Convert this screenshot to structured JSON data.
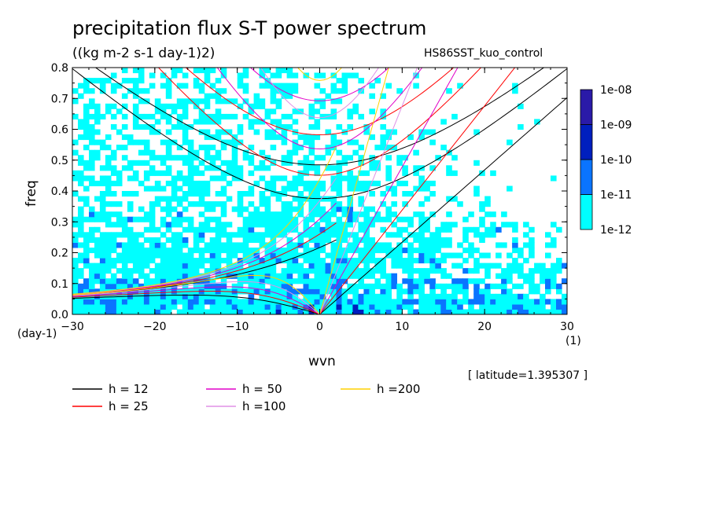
{
  "title": "precipitation flux S-T power spectrum",
  "units": "((kg m-2 s-1 day-1)2)",
  "run_name": "HS86SST_kuo_control",
  "latitude_label": "[ latitude=1.395307 ]",
  "chart_data": {
    "type": "heatmap",
    "title": "precipitation flux S-T power spectrum",
    "xlabel": "wvn",
    "ylabel": "freq",
    "x_unit": "(1)",
    "y_unit": "(day-1)",
    "xlim": [
      -30,
      30
    ],
    "ylim": [
      0,
      0.8
    ],
    "x_ticks": [
      -30,
      -20,
      -10,
      0,
      10,
      20,
      30
    ],
    "y_ticks": [
      0.0,
      0.1,
      0.2,
      0.3,
      0.4,
      0.5,
      0.6,
      0.7,
      0.8
    ],
    "colorbar": {
      "levels": [
        "1e-12",
        "1e-11",
        "1e-10",
        "1e-09",
        "1e-08"
      ],
      "colors": [
        "#00ffff",
        "#0a74ff",
        "#001fbe",
        "#2a1aa8"
      ]
    },
    "dispersion_legend": [
      {
        "label": "h = 12",
        "h": 12,
        "color": "#000000"
      },
      {
        "label": "h = 25",
        "h": 25,
        "color": "#ff0000"
      },
      {
        "label": "h = 50",
        "h": 50,
        "color": "#e000c8"
      },
      {
        "label": "h =100",
        "h": 100,
        "color": "#e090e6"
      },
      {
        "label": "h =200",
        "h": 200,
        "color": "#ffd000"
      }
    ]
  }
}
